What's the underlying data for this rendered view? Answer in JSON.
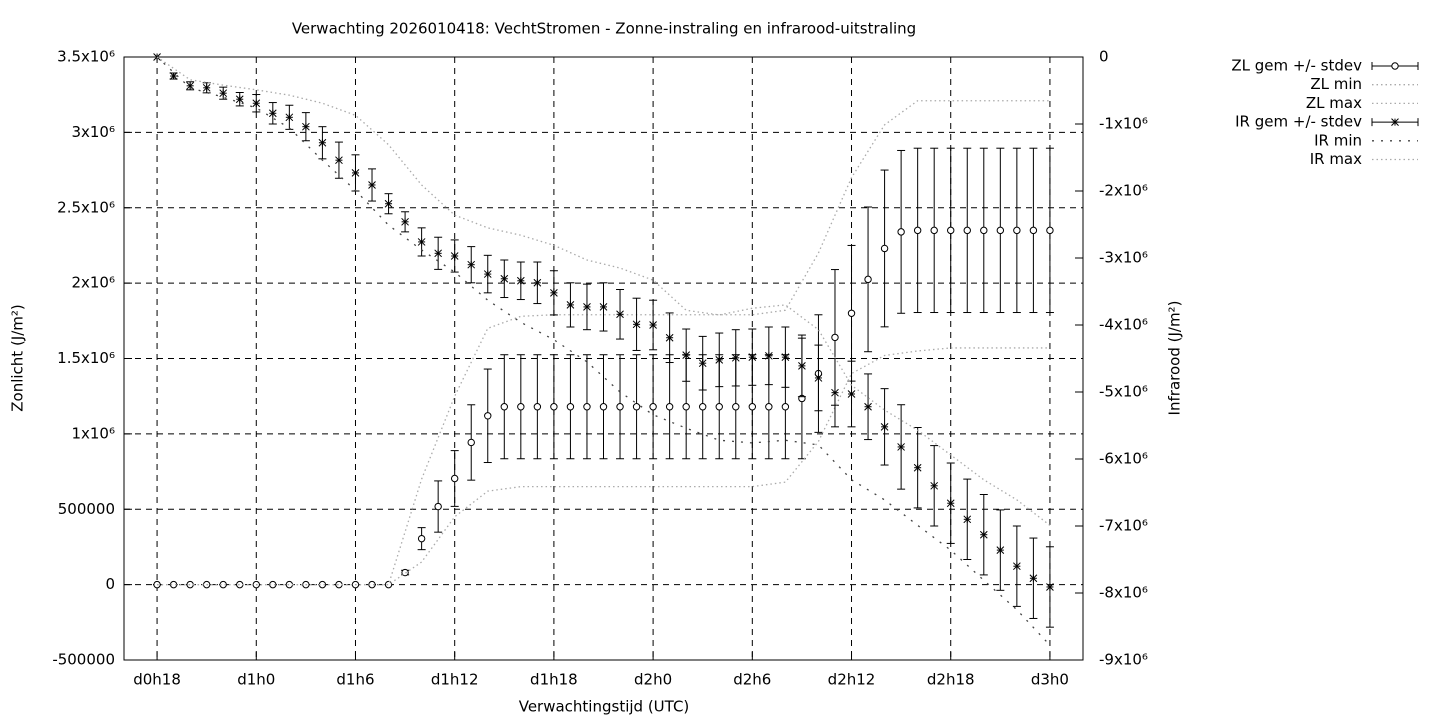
{
  "chart_data": {
    "type": "errorbar",
    "title": "Verwachting 2026010418: VechtStromen - Zonne-instraling en infrarood-uitstraling",
    "xlabel": "Verwachtingstijd (UTC)",
    "ylabel": "Zonlicht (J/m²)",
    "y2label": "Infrarood (J/m²)",
    "xlim": [
      16,
      74
    ],
    "xticks": [
      {
        "value": 18,
        "label": "d0h18"
      },
      {
        "value": 24,
        "label": "d1h0"
      },
      {
        "value": 30,
        "label": "d1h6"
      },
      {
        "value": 36,
        "label": "d1h12"
      },
      {
        "value": 42,
        "label": "d1h18"
      },
      {
        "value": 48,
        "label": "d2h0"
      },
      {
        "value": 54,
        "label": "d2h6"
      },
      {
        "value": 60,
        "label": "d2h12"
      },
      {
        "value": 66,
        "label": "d2h18"
      },
      {
        "value": 72,
        "label": "d3h0"
      }
    ],
    "ylim": [
      -500000,
      3500000
    ],
    "yticks": [
      -500000,
      0,
      500000,
      {
        "value": 1000000,
        "label": "1x10⁶"
      },
      {
        "value": 1500000,
        "label": "1.5x10⁶"
      },
      {
        "value": 2000000,
        "label": "2x10⁶"
      },
      {
        "value": 2500000,
        "label": "2.5x10⁶"
      },
      {
        "value": 3000000,
        "label": "3x10⁶"
      },
      {
        "value": 3500000,
        "label": "3.5x10⁶"
      }
    ],
    "y2lim": [
      -9000000,
      0
    ],
    "y2ticks": [
      0,
      {
        "value": -1000000,
        "label": "-1x10⁶"
      },
      {
        "value": -2000000,
        "label": "-2x10⁶"
      },
      {
        "value": -3000000,
        "label": "-3x10⁶"
      },
      {
        "value": -4000000,
        "label": "-4x10⁶"
      },
      {
        "value": -5000000,
        "label": "-5x10⁶"
      },
      {
        "value": -6000000,
        "label": "-6x10⁶"
      },
      {
        "value": -7000000,
        "label": "-7x10⁶"
      },
      {
        "value": -8000000,
        "label": "-8x10⁶"
      },
      {
        "value": -9000000,
        "label": "-9x10⁶"
      }
    ],
    "grid": true,
    "legend": "outside-right",
    "series": [
      {
        "name": "ZL gem +/- stdev",
        "color": "#000000",
        "marker": "circle",
        "x": [
          18,
          19,
          20,
          21,
          22,
          23,
          24,
          25,
          26,
          27,
          28,
          29,
          30,
          31,
          32,
          33,
          34,
          35,
          36,
          37,
          38,
          39,
          40,
          41,
          42,
          43,
          44,
          45,
          46,
          47,
          48,
          49,
          50,
          51,
          52,
          53,
          54,
          55,
          56,
          57,
          58,
          59,
          60,
          61,
          62,
          63,
          64,
          65,
          66,
          67,
          68,
          69,
          70,
          71,
          72
        ],
        "values": [
          0,
          0,
          0,
          0,
          0,
          0,
          0,
          0,
          0,
          0,
          0,
          0,
          0,
          0,
          0,
          80000,
          305000,
          518000,
          704000,
          943000,
          1120000,
          1180000,
          1180000,
          1180000,
          1180000,
          1180000,
          1180000,
          1180000,
          1180000,
          1180000,
          1180000,
          1180000,
          1180000,
          1180000,
          1180000,
          1180000,
          1180000,
          1180000,
          1180000,
          1235000,
          1400000,
          1640000,
          1800000,
          2025000,
          2230000,
          2340000,
          2350000,
          2350000,
          2350000,
          2350000,
          2350000,
          2350000,
          2350000,
          2350000,
          2350000
        ],
        "errors": [
          0,
          0,
          0,
          0,
          0,
          0,
          0,
          0,
          0,
          0,
          0,
          0,
          0,
          0,
          0,
          15000,
          73000,
          170000,
          185000,
          250000,
          310000,
          345000,
          345000,
          345000,
          345000,
          345000,
          345000,
          345000,
          345000,
          345000,
          345000,
          345000,
          345000,
          345000,
          345000,
          345000,
          345000,
          345000,
          345000,
          400000,
          390000,
          450000,
          450000,
          480000,
          520000,
          540000,
          545000,
          545000,
          545000,
          545000,
          545000,
          545000,
          545000,
          545000,
          545000
        ]
      },
      {
        "name": "ZL min",
        "color": "#aaaaaa",
        "dash": "dotted",
        "x": [
          18,
          20,
          22,
          24,
          26,
          28,
          30,
          32,
          34,
          36,
          38,
          40,
          42,
          44,
          46,
          48,
          50,
          52,
          54,
          56,
          58,
          60,
          62,
          64,
          66,
          68,
          70,
          72
        ],
        "values": [
          0,
          0,
          0,
          0,
          0,
          0,
          0,
          0,
          150000,
          450000,
          620000,
          650000,
          650000,
          650000,
          650000,
          650000,
          650000,
          650000,
          650000,
          680000,
          950000,
          1400000,
          1520000,
          1550000,
          1570000,
          1570000,
          1570000,
          1570000
        ]
      },
      {
        "name": "ZL max",
        "color": "#aaaaaa",
        "dash": "dotted",
        "x": [
          18,
          20,
          22,
          24,
          26,
          28,
          30,
          32,
          34,
          36,
          38,
          40,
          42,
          44,
          46,
          48,
          50,
          52,
          54,
          56,
          58,
          60,
          62,
          64,
          66,
          68,
          70,
          72
        ],
        "values": [
          0,
          0,
          0,
          0,
          0,
          0,
          0,
          0,
          700000,
          1250000,
          1700000,
          1780000,
          1790000,
          1790000,
          1790000,
          1790000,
          1790000,
          1790000,
          1790000,
          1820000,
          2200000,
          2700000,
          3050000,
          3210000,
          3210000,
          3210000,
          3210000,
          3210000
        ]
      },
      {
        "name": "IR gem +/- stdev",
        "color": "#000000",
        "marker": "star",
        "axis": "y2",
        "x": [
          18,
          19,
          20,
          21,
          22,
          23,
          24,
          25,
          26,
          27,
          28,
          29,
          30,
          31,
          32,
          33,
          34,
          35,
          36,
          37,
          38,
          39,
          40,
          41,
          42,
          43,
          44,
          45,
          46,
          47,
          48,
          49,
          50,
          51,
          52,
          53,
          54,
          55,
          56,
          57,
          58,
          59,
          60,
          61,
          62,
          63,
          64,
          65,
          66,
          67,
          68,
          69,
          70,
          71,
          72
        ],
        "values": [
          0,
          -284000,
          -430000,
          -460000,
          -540000,
          -630000,
          -690000,
          -840000,
          -900000,
          -1040000,
          -1280000,
          -1540000,
          -1730000,
          -1910000,
          -2190000,
          -2460000,
          -2760000,
          -2930000,
          -2970000,
          -3100000,
          -3240000,
          -3310000,
          -3340000,
          -3370000,
          -3520000,
          -3700000,
          -3730000,
          -3730000,
          -3840000,
          -3990000,
          -4000000,
          -4190000,
          -4450000,
          -4570000,
          -4520000,
          -4490000,
          -4480000,
          -4460000,
          -4480000,
          -4610000,
          -4790000,
          -5010000,
          -5030000,
          -5220000,
          -5520000,
          -5820000,
          -6130000,
          -6400000,
          -6660000,
          -6900000,
          -7130000,
          -7360000,
          -7600000,
          -7780000,
          -7910000
        ],
        "errors": [
          0,
          45000,
          60000,
          75000,
          90000,
          100000,
          130000,
          160000,
          180000,
          210000,
          240000,
          270000,
          270000,
          240000,
          150000,
          150000,
          210000,
          240000,
          240000,
          270000,
          280000,
          280000,
          280000,
          310000,
          330000,
          330000,
          340000,
          360000,
          370000,
          390000,
          370000,
          370000,
          390000,
          400000,
          400000,
          420000,
          420000,
          430000,
          450000,
          460000,
          490000,
          510000,
          490000,
          490000,
          570000,
          630000,
          600000,
          600000,
          600000,
          600000,
          600000,
          600000,
          600000,
          600000,
          600000
        ]
      },
      {
        "name": "IR min",
        "color": "#444444",
        "dash": "loose-dotted",
        "axis": "y2",
        "x": [
          18,
          20,
          22,
          24,
          26,
          28,
          30,
          32,
          34,
          36,
          38,
          40,
          42,
          44,
          46,
          48,
          50,
          52,
          54,
          56,
          58,
          60,
          62,
          64,
          66,
          68,
          70,
          72
        ],
        "values": [
          0,
          -460000,
          -600000,
          -760000,
          -1060000,
          -1540000,
          -1990000,
          -2510000,
          -2880000,
          -3210000,
          -3630000,
          -3960000,
          -4220000,
          -4550000,
          -5000000,
          -5340000,
          -5540000,
          -5720000,
          -5760000,
          -5720000,
          -5790000,
          -6310000,
          -6610000,
          -6990000,
          -7360000,
          -7810000,
          -8250000,
          -8780000
        ]
      },
      {
        "name": "IR max",
        "color": "#aaaaaa",
        "dash": "dotted",
        "axis": "y2",
        "x": [
          18,
          20,
          22,
          24,
          26,
          28,
          30,
          32,
          34,
          36,
          38,
          40,
          42,
          44,
          46,
          48,
          50,
          52,
          54,
          56,
          58,
          60,
          62,
          64,
          66,
          68,
          70,
          72
        ],
        "values": [
          0,
          -340000,
          -420000,
          -490000,
          -570000,
          -690000,
          -870000,
          -1310000,
          -1910000,
          -2360000,
          -2550000,
          -2660000,
          -2810000,
          -3030000,
          -3150000,
          -3330000,
          -3780000,
          -3850000,
          -3750000,
          -3700000,
          -4070000,
          -4900000,
          -5270000,
          -5570000,
          -5940000,
          -6310000,
          -6610000,
          -6990000
        ]
      }
    ]
  }
}
